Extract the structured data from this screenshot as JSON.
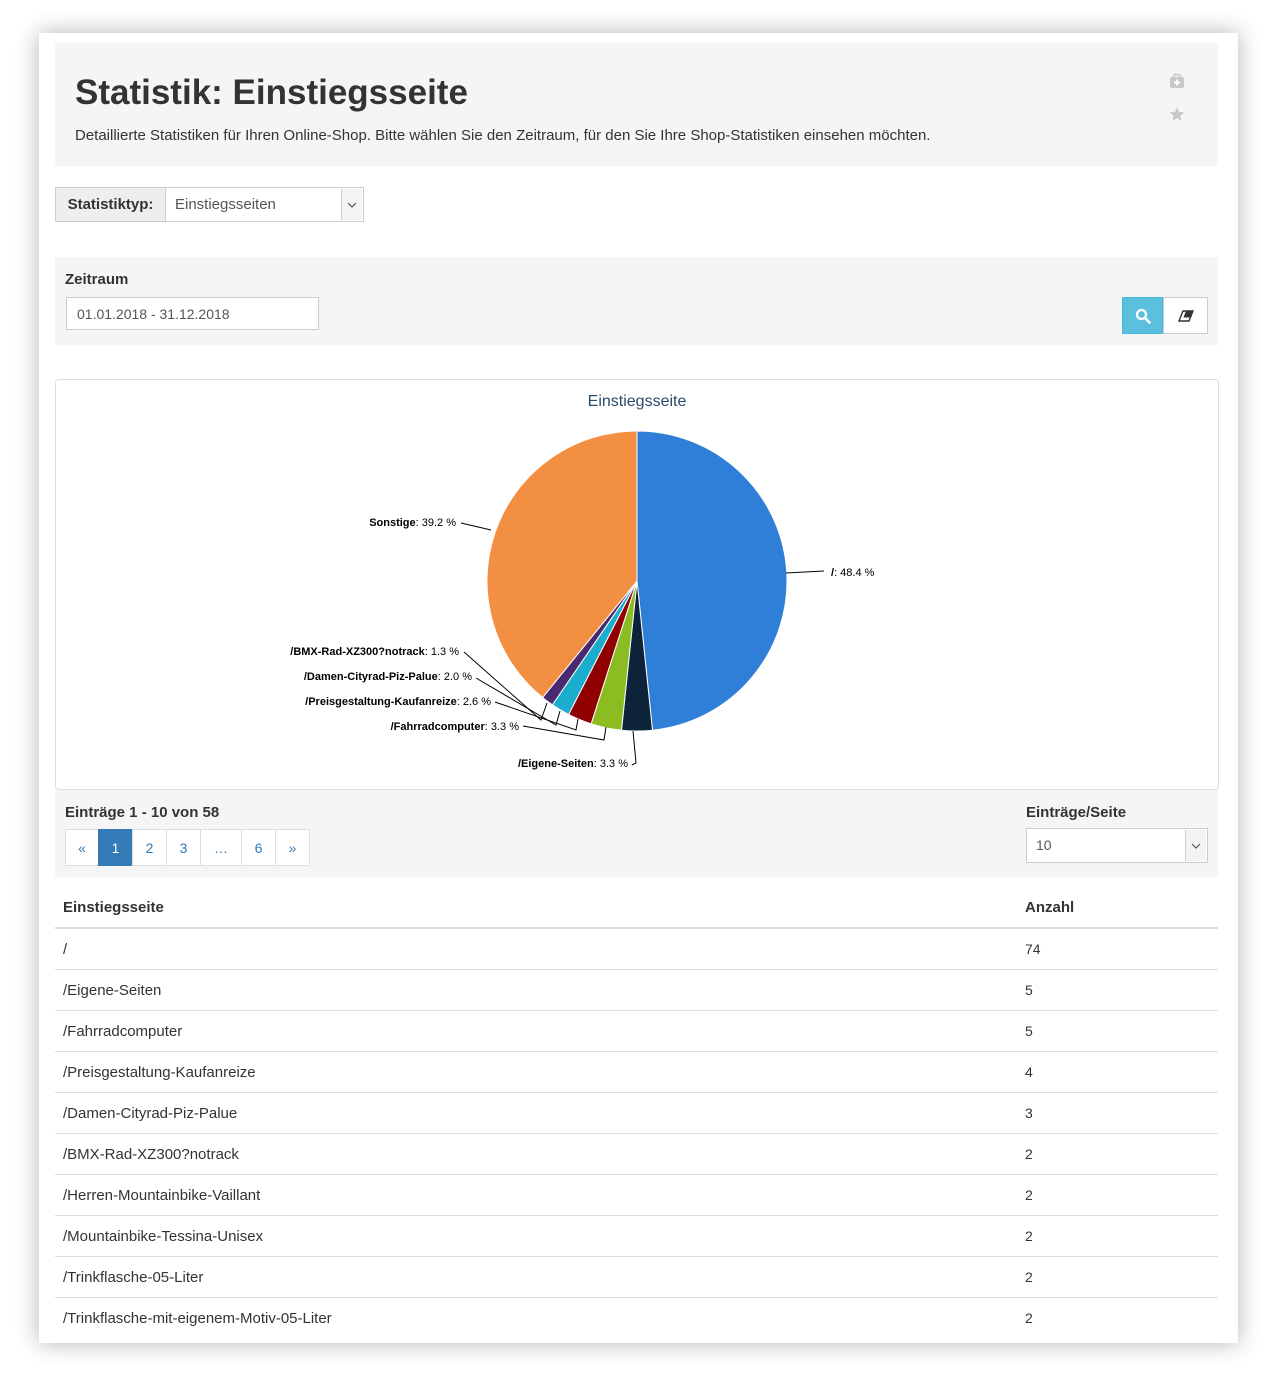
{
  "header": {
    "title": "Statistik: Einstiegsseite",
    "description": "Detaillierte Statistiken für Ihren Online-Shop. Bitte wählen Sie den Zeitraum, für den Sie Ihre Shop-Statistiken einsehen möchten."
  },
  "stat_type": {
    "label": "Statistiktyp:",
    "value": "Einstiegsseiten"
  },
  "filter": {
    "label": "Zeitraum",
    "date_range": "01.01.2018 - 31.12.2018"
  },
  "chart_data": {
    "type": "pie",
    "title": "Einstiegsseite",
    "slices": [
      {
        "name": "/",
        "value": 48.4,
        "color": "#2f7ed8",
        "label": "/: 48.4 %"
      },
      {
        "name": "/Eigene-Seiten",
        "value": 3.3,
        "color": "#0d233a",
        "label": "/Eigene-Seiten: 3.3 %"
      },
      {
        "name": "/Fahrradcomputer",
        "value": 3.3,
        "color": "#8bbc21",
        "label": "/Fahrradcomputer: 3.3 %"
      },
      {
        "name": "/Preisgestaltung-Kaufanreize",
        "value": 2.6,
        "color": "#910000",
        "label": "/Preisgestaltung-Kaufanreize: 2.6 %"
      },
      {
        "name": "/Damen-Cityrad-Piz-Palue",
        "value": 2.0,
        "color": "#1aadce",
        "label": "/Damen-Cityrad-Piz-Palue: 2.0 %"
      },
      {
        "name": "/BMX-Rad-XZ300?notrack",
        "value": 1.3,
        "color": "#492970",
        "label": "/BMX-Rad-XZ300?notrack: 1.3 %"
      },
      {
        "name": "Sonstige",
        "value": 39.2,
        "color": "#f28f43",
        "label": "Sonstige: 39.2 %"
      }
    ]
  },
  "pager": {
    "entries_info": "Einträge 1 - 10 von 58",
    "pages": [
      "«",
      "1",
      "2",
      "3",
      "…",
      "6",
      "»"
    ],
    "active_page": "1",
    "per_page_label": "Einträge/Seite",
    "per_page_value": "10"
  },
  "table": {
    "headers": [
      "Einstiegsseite",
      "Anzahl"
    ],
    "rows": [
      [
        "/",
        "74"
      ],
      [
        "/Eigene-Seiten",
        "5"
      ],
      [
        "/Fahrradcomputer",
        "5"
      ],
      [
        "/Preisgestaltung-Kaufanreize",
        "4"
      ],
      [
        "/Damen-Cityrad-Piz-Palue",
        "3"
      ],
      [
        "/BMX-Rad-XZ300?notrack",
        "2"
      ],
      [
        "/Herren-Mountainbike-Vaillant",
        "2"
      ],
      [
        "/Mountainbike-Tessina-Unisex",
        "2"
      ],
      [
        "/Trinkflasche-05-Liter",
        "2"
      ],
      [
        "/Trinkflasche-mit-eigenem-Motiv-05-Liter",
        "2"
      ]
    ]
  },
  "icons": {
    "header_icon_1": "first-aid-kit-icon",
    "header_icon_2": "star-icon",
    "search_button": "search-icon",
    "clear_button": "eraser-icon"
  },
  "colors": {
    "info_button": "#5bc0de",
    "primary": "#337ab7"
  }
}
